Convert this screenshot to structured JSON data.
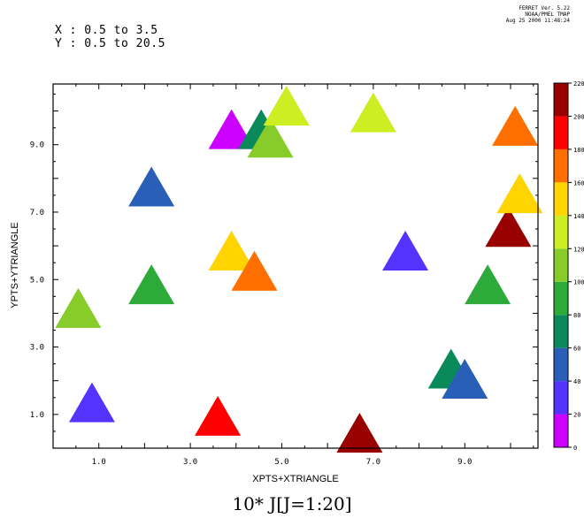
{
  "header": {
    "x_range": "X : 0.5  to  3.5",
    "y_range": "Y : 0.5  to  20.5",
    "stamp_line1": "FERRET Ver. 5.22",
    "stamp_line2": "NOAA/PMEL TMAP",
    "stamp_line3": "Aug 25 2000 11:48:24"
  },
  "chart_data": {
    "type": "scatter",
    "marker": "triangle",
    "title": "10* J[J=1:20]",
    "xlabel": "XPTS+XTRIANGLE",
    "ylabel": "YPTS+YTRIANGLE",
    "xlim": [
      0.0,
      10.6
    ],
    "ylim": [
      0.0,
      10.8
    ],
    "xticks": [
      "1.0",
      "3.0",
      "5.0",
      "7.0",
      "9.0"
    ],
    "xtick_values": [
      1,
      3,
      5,
      7,
      9
    ],
    "yticks": [
      "1.0",
      "3.0",
      "5.0",
      "7.0",
      "9.0"
    ],
    "ytick_values": [
      1,
      3,
      5,
      7,
      9
    ],
    "points": [
      {
        "x": 0.85,
        "y": 1.3,
        "v": 30
      },
      {
        "x": 0.55,
        "y": 4.1,
        "v": 110
      },
      {
        "x": 2.15,
        "y": 7.7,
        "v": 50
      },
      {
        "x": 2.15,
        "y": 4.8,
        "v": 90
      },
      {
        "x": 3.6,
        "y": 0.9,
        "v": 190
      },
      {
        "x": 3.9,
        "y": 9.4,
        "v": 10
      },
      {
        "x": 3.9,
        "y": 5.8,
        "v": 150
      },
      {
        "x": 4.4,
        "y": 5.2,
        "v": 170
      },
      {
        "x": 4.55,
        "y": 9.4,
        "v": 70
      },
      {
        "x": 4.75,
        "y": 9.15,
        "v": 110
      },
      {
        "x": 5.1,
        "y": 10.1,
        "v": 130
      },
      {
        "x": 6.7,
        "y": 0.4,
        "v": 200
      },
      {
        "x": 7.0,
        "y": 9.9,
        "v": 130
      },
      {
        "x": 7.7,
        "y": 5.8,
        "v": 30
      },
      {
        "x": 8.7,
        "y": 2.3,
        "v": 70
      },
      {
        "x": 9.0,
        "y": 2.0,
        "v": 50
      },
      {
        "x": 9.5,
        "y": 4.8,
        "v": 90
      },
      {
        "x": 9.95,
        "y": 6.5,
        "v": 210
      },
      {
        "x": 10.1,
        "y": 9.5,
        "v": 170
      },
      {
        "x": 10.2,
        "y": 7.5,
        "v": 150
      }
    ],
    "colorbar": {
      "labels": [
        "0",
        "20",
        "40",
        "60",
        "80",
        "100",
        "120",
        "140",
        "160",
        "180",
        "200",
        "220"
      ],
      "colors": [
        "#cc00ff",
        "#5533ff",
        "#2a5fb8",
        "#0a8a5a",
        "#2eaa3a",
        "#88cc2a",
        "#ccee22",
        "#ffd400",
        "#ff6f00",
        "#ff0000",
        "#990000"
      ]
    }
  }
}
